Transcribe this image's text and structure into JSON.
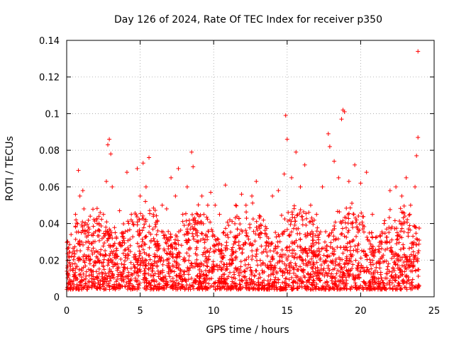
{
  "chart_data": {
    "type": "scatter",
    "title": "Day 126 of 2024, Rate Of TEC Index for receiver p350",
    "xlabel": "GPS time / hours",
    "ylabel": "ROTI / TECUs",
    "xlim": [
      0,
      25
    ],
    "ylim": [
      0,
      0.14
    ],
    "x_ticks": [
      0,
      5,
      10,
      15,
      20,
      25
    ],
    "y_ticks": [
      0,
      0.02,
      0.04,
      0.06,
      0.08,
      0.1,
      0.12,
      0.14
    ],
    "x_tick_labels": [
      "0",
      "5",
      "10",
      "15",
      "20",
      "25"
    ],
    "y_tick_labels": [
      "0",
      "0.02",
      "0.04",
      "0.06",
      "0.08",
      "0.1",
      "0.12",
      "0.14"
    ],
    "grid": true,
    "marker": "+",
    "marker_color": "#ff0000",
    "series": [
      {
        "name": "ROTI",
        "points": [
          [
            0.1,
            0.012
          ],
          [
            0.2,
            0.018
          ],
          [
            0.3,
            0.034
          ],
          [
            0.5,
            0.025
          ],
          [
            0.6,
            0.045
          ],
          [
            0.8,
            0.069
          ],
          [
            0.9,
            0.055
          ],
          [
            1.0,
            0.035
          ],
          [
            1.1,
            0.058
          ],
          [
            1.3,
            0.022
          ],
          [
            1.5,
            0.015
          ],
          [
            1.8,
            0.03
          ],
          [
            2.0,
            0.025
          ],
          [
            2.2,
            0.02
          ],
          [
            2.5,
            0.045
          ],
          [
            2.7,
            0.063
          ],
          [
            2.8,
            0.083
          ],
          [
            2.9,
            0.086
          ],
          [
            3.0,
            0.078
          ],
          [
            3.1,
            0.06
          ],
          [
            3.3,
            0.035
          ],
          [
            3.6,
            0.047
          ],
          [
            3.9,
            0.032
          ],
          [
            4.1,
            0.068
          ],
          [
            4.4,
            0.045
          ],
          [
            4.8,
            0.07
          ],
          [
            5.0,
            0.055
          ],
          [
            5.2,
            0.073
          ],
          [
            5.4,
            0.06
          ],
          [
            5.6,
            0.076
          ],
          [
            5.9,
            0.045
          ],
          [
            6.2,
            0.036
          ],
          [
            6.5,
            0.05
          ],
          [
            6.8,
            0.048
          ],
          [
            7.1,
            0.065
          ],
          [
            7.4,
            0.055
          ],
          [
            7.6,
            0.07
          ],
          [
            7.9,
            0.045
          ],
          [
            8.2,
            0.06
          ],
          [
            8.5,
            0.079
          ],
          [
            8.6,
            0.071
          ],
          [
            8.9,
            0.045
          ],
          [
            9.2,
            0.055
          ],
          [
            9.6,
            0.05
          ],
          [
            9.8,
            0.057
          ],
          [
            10.1,
            0.05
          ],
          [
            10.4,
            0.045
          ],
          [
            10.8,
            0.061
          ],
          [
            11.1,
            0.042
          ],
          [
            11.5,
            0.05
          ],
          [
            11.9,
            0.056
          ],
          [
            12.2,
            0.05
          ],
          [
            12.6,
            0.055
          ],
          [
            12.9,
            0.063
          ],
          [
            13.2,
            0.035
          ],
          [
            13.6,
            0.03
          ],
          [
            14.0,
            0.055
          ],
          [
            14.4,
            0.058
          ],
          [
            14.8,
            0.067
          ],
          [
            14.9,
            0.099
          ],
          [
            15.0,
            0.086
          ],
          [
            15.3,
            0.065
          ],
          [
            15.6,
            0.079
          ],
          [
            15.9,
            0.06
          ],
          [
            16.2,
            0.072
          ],
          [
            16.6,
            0.05
          ],
          [
            17.0,
            0.045
          ],
          [
            17.4,
            0.06
          ],
          [
            17.8,
            0.089
          ],
          [
            17.9,
            0.082
          ],
          [
            18.2,
            0.074
          ],
          [
            18.5,
            0.065
          ],
          [
            18.7,
            0.097
          ],
          [
            18.8,
            0.102
          ],
          [
            18.9,
            0.101
          ],
          [
            19.2,
            0.063
          ],
          [
            19.6,
            0.072
          ],
          [
            20.0,
            0.062
          ],
          [
            20.4,
            0.068
          ],
          [
            20.8,
            0.045
          ],
          [
            21.2,
            0.025
          ],
          [
            21.6,
            0.04
          ],
          [
            22.0,
            0.058
          ],
          [
            22.4,
            0.06
          ],
          [
            22.8,
            0.055
          ],
          [
            23.1,
            0.065
          ],
          [
            23.4,
            0.05
          ],
          [
            23.7,
            0.06
          ],
          [
            23.8,
            0.077
          ],
          [
            23.9,
            0.087
          ],
          [
            23.9,
            0.134
          ]
        ]
      }
    ]
  }
}
